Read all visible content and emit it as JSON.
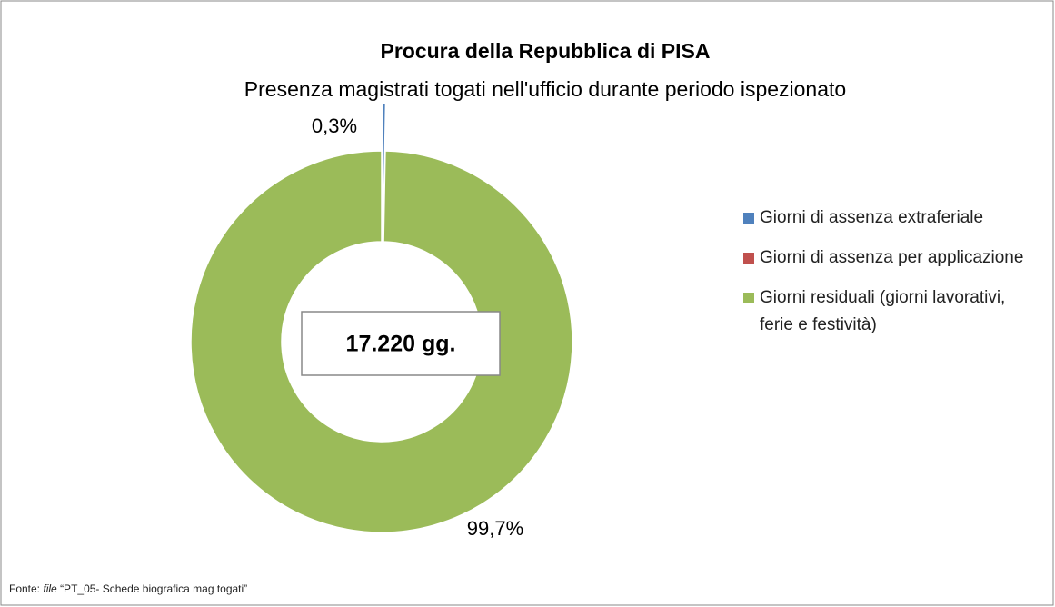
{
  "chart_data": {
    "type": "donut",
    "title": "Procura della Repubblica di PISA",
    "subtitle": "Presenza magistrati togati nell'ufficio durante periodo ispezionato",
    "categories": [
      "Giorni di assenza extraferiale",
      "Giorni di assenza per applicazione",
      "Giorni residuali (giorni lavorativi, ferie e festività)"
    ],
    "values": [
      0.3,
      0,
      99.7
    ],
    "value_labels": [
      "0,3%",
      null,
      "99,7%"
    ],
    "colors": [
      "#4f81bd",
      "#c0504d",
      "#9bbb59"
    ],
    "center_label": "17.220 gg.",
    "legend": "right"
  },
  "source": {
    "label": "Fonte:",
    "emphasis": "file",
    "text": "“PT_05- Schede biografica mag togati”"
  }
}
